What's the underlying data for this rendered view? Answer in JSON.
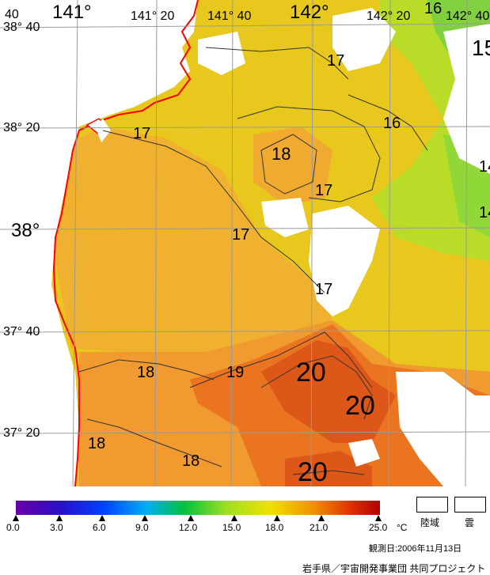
{
  "map": {
    "longitude_labels": [
      "141°",
      "141° 20",
      "141° 40",
      "142°",
      "142° 20",
      "142° 40"
    ],
    "latitude_labels": [
      "38° 40",
      "38° 20",
      "38°",
      "37° 40",
      "37° 20"
    ],
    "corner_label": "40",
    "isotherm_labels": [
      "15",
      "16",
      "16",
      "14",
      "14",
      "17",
      "17",
      "17",
      "17",
      "17",
      "18",
      "18",
      "18",
      "18",
      "19",
      "20",
      "20",
      "20"
    ]
  },
  "legend": {
    "ticks": [
      "0.0",
      "3.0",
      "6.0",
      "9.0",
      "12.0",
      "15.0",
      "18.0",
      "21.0",
      "25.0"
    ],
    "unit": "°C",
    "land_label": "陸域",
    "cloud_label": "雲"
  },
  "footer": {
    "observation_date": "観測日:2006年11月13日",
    "credit": "岩手県／宇宙開発事業団 共同プロジェクト"
  },
  "colors": {
    "sst_17": "#e8c81c",
    "sst_18": "#f0a830",
    "sst_19": "#f08a28",
    "sst_20": "#e0621c",
    "sst_16": "#b8dc28",
    "coastline": "#ff0000",
    "grid": "#9a9a9a"
  }
}
